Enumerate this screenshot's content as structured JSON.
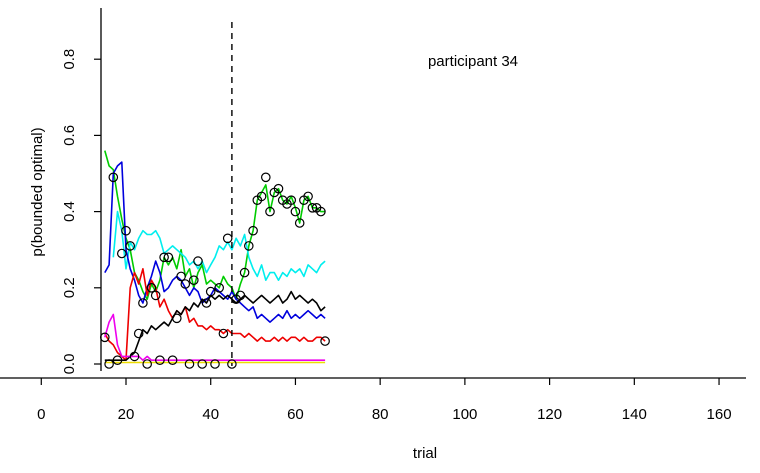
{
  "chart_data": {
    "type": "line",
    "annotation": "participant 34",
    "xlabel": "trial",
    "ylabel": "p(bounded optimal)",
    "x_ticks": [
      0,
      20,
      40,
      60,
      80,
      100,
      120,
      140,
      160
    ],
    "y_ticks": [
      0.0,
      0.2,
      0.4,
      0.6,
      0.8
    ],
    "xlim": [
      15,
      160
    ],
    "ylim": [
      0.0,
      0.9
    ],
    "vline_x": 45,
    "grid": false,
    "series": [
      {
        "color": "#00cc00",
        "x": [
          15,
          16,
          17,
          18,
          19,
          20,
          21,
          22,
          23,
          24,
          25,
          26,
          27,
          28,
          29,
          30,
          31,
          32,
          33,
          34,
          35,
          36,
          37,
          38,
          39,
          40,
          41,
          42,
          43,
          44,
          45,
          46,
          47,
          48,
          49,
          50,
          51,
          52,
          53,
          54,
          55,
          56,
          57,
          58,
          59,
          60,
          61,
          62,
          63,
          64,
          65,
          66,
          67
        ],
        "values": [
          0.56,
          0.52,
          0.51,
          0.44,
          0.38,
          0.33,
          0.3,
          0.24,
          0.22,
          0.19,
          0.17,
          0.21,
          0.19,
          0.22,
          0.28,
          0.26,
          0.28,
          0.25,
          0.3,
          0.23,
          0.25,
          0.2,
          0.24,
          0.26,
          0.21,
          0.22,
          0.21,
          0.2,
          0.23,
          0.21,
          0.2,
          0.17,
          0.21,
          0.24,
          0.31,
          0.35,
          0.43,
          0.45,
          0.47,
          0.4,
          0.45,
          0.46,
          0.43,
          0.42,
          0.44,
          0.41,
          0.37,
          0.43,
          0.44,
          0.41,
          0.41,
          0.4,
          0.4
        ]
      },
      {
        "color": "#00eeee",
        "x": [
          17,
          18,
          19,
          20,
          21,
          22,
          23,
          24,
          25,
          26,
          27,
          28,
          29,
          30,
          31,
          32,
          33,
          34,
          35,
          36,
          37,
          38,
          39,
          40,
          41,
          42,
          43,
          44,
          45,
          46,
          47,
          48,
          49,
          50,
          51,
          52,
          53,
          54,
          55,
          56,
          57,
          58,
          59,
          60,
          61,
          62,
          63,
          64,
          65,
          66,
          67
        ],
        "values": [
          0.28,
          0.4,
          0.35,
          0.25,
          0.32,
          0.3,
          0.33,
          0.35,
          0.34,
          0.34,
          0.35,
          0.33,
          0.29,
          0.3,
          0.31,
          0.3,
          0.29,
          0.28,
          0.26,
          0.27,
          0.25,
          0.27,
          0.24,
          0.26,
          0.28,
          0.31,
          0.3,
          0.32,
          0.3,
          0.33,
          0.31,
          0.34,
          0.28,
          0.25,
          0.23,
          0.26,
          0.22,
          0.24,
          0.24,
          0.22,
          0.24,
          0.23,
          0.25,
          0.24,
          0.25,
          0.23,
          0.26,
          0.25,
          0.24,
          0.26,
          0.27
        ]
      },
      {
        "color": "#0000dd",
        "x": [
          15,
          16,
          17,
          18,
          19,
          20,
          21,
          22,
          23,
          24,
          25,
          26,
          27,
          28,
          29,
          30,
          31,
          32,
          33,
          34,
          35,
          36,
          37,
          38,
          39,
          40,
          41,
          42,
          43,
          44,
          45,
          46,
          47,
          48,
          49,
          50,
          51,
          52,
          53,
          54,
          55,
          56,
          57,
          58,
          59,
          60,
          61,
          62,
          63,
          64,
          65,
          66,
          67
        ],
        "values": [
          0.24,
          0.26,
          0.5,
          0.52,
          0.53,
          0.3,
          0.25,
          0.22,
          0.18,
          0.16,
          0.2,
          0.23,
          0.27,
          0.24,
          0.19,
          0.2,
          0.22,
          0.23,
          0.22,
          0.2,
          0.18,
          0.2,
          0.19,
          0.16,
          0.17,
          0.18,
          0.2,
          0.19,
          0.18,
          0.17,
          0.19,
          0.17,
          0.16,
          0.15,
          0.14,
          0.15,
          0.12,
          0.13,
          0.12,
          0.11,
          0.12,
          0.13,
          0.12,
          0.14,
          0.12,
          0.13,
          0.12,
          0.13,
          0.14,
          0.13,
          0.12,
          0.13,
          0.12
        ]
      },
      {
        "color": "#ee0000",
        "x": [
          15,
          16,
          17,
          18,
          19,
          20,
          21,
          22,
          23,
          24,
          25,
          26,
          27,
          28,
          29,
          30,
          31,
          32,
          33,
          34,
          35,
          36,
          37,
          38,
          39,
          40,
          41,
          42,
          43,
          44,
          45,
          46,
          47,
          48,
          49,
          50,
          51,
          52,
          53,
          54,
          55,
          56,
          57,
          58,
          59,
          60,
          61,
          62,
          63,
          64,
          65,
          66,
          67
        ],
        "values": [
          0.08,
          0.06,
          0.05,
          0.03,
          0.02,
          0.01,
          0.2,
          0.24,
          0.21,
          0.25,
          0.18,
          0.22,
          0.2,
          0.15,
          0.17,
          0.14,
          0.12,
          0.14,
          0.13,
          0.15,
          0.11,
          0.12,
          0.1,
          0.1,
          0.09,
          0.1,
          0.09,
          0.09,
          0.08,
          0.09,
          0.08,
          0.08,
          0.08,
          0.07,
          0.08,
          0.07,
          0.06,
          0.07,
          0.06,
          0.06,
          0.07,
          0.06,
          0.07,
          0.06,
          0.07,
          0.07,
          0.06,
          0.07,
          0.06,
          0.06,
          0.07,
          0.07,
          0.06
        ]
      },
      {
        "color": "#000000",
        "x": [
          15,
          16,
          17,
          18,
          19,
          20,
          21,
          22,
          23,
          24,
          25,
          26,
          27,
          28,
          29,
          30,
          31,
          32,
          33,
          34,
          35,
          36,
          37,
          38,
          39,
          40,
          41,
          42,
          43,
          44,
          45,
          46,
          47,
          48,
          49,
          50,
          51,
          52,
          53,
          54,
          55,
          56,
          57,
          58,
          59,
          60,
          61,
          62,
          63,
          64,
          65,
          66,
          67
        ],
        "values": [
          0.01,
          0.01,
          0.01,
          0.01,
          0.01,
          0.01,
          0.02,
          0.03,
          0.06,
          0.09,
          0.08,
          0.1,
          0.09,
          0.1,
          0.11,
          0.1,
          0.12,
          0.14,
          0.13,
          0.15,
          0.14,
          0.16,
          0.15,
          0.17,
          0.16,
          0.18,
          0.17,
          0.18,
          0.17,
          0.18,
          0.17,
          0.16,
          0.17,
          0.18,
          0.17,
          0.16,
          0.17,
          0.18,
          0.17,
          0.16,
          0.17,
          0.18,
          0.16,
          0.17,
          0.19,
          0.17,
          0.18,
          0.17,
          0.16,
          0.17,
          0.16,
          0.14,
          0.15
        ]
      },
      {
        "color": "#ee00ee",
        "x": [
          15,
          16,
          17,
          18,
          19,
          20,
          21,
          22,
          23,
          24,
          25,
          26,
          27,
          28,
          29,
          30,
          31,
          32,
          33,
          34,
          35,
          36,
          37,
          38,
          39,
          40,
          41,
          42,
          43,
          44,
          45,
          46,
          47,
          48,
          49,
          50,
          51,
          52,
          53,
          54,
          55,
          56,
          57,
          58,
          59,
          60,
          61,
          62,
          63,
          64,
          65,
          66,
          67
        ],
        "values": [
          0.07,
          0.11,
          0.13,
          0.05,
          0.02,
          0.02,
          0.02,
          0.02,
          0.02,
          0.01,
          0.02,
          0.01,
          0.01,
          0.01,
          0.01,
          0.01,
          0.01,
          0.01,
          0.01,
          0.01,
          0.01,
          0.01,
          0.01,
          0.01,
          0.01,
          0.01,
          0.01,
          0.01,
          0.01,
          0.01,
          0.01,
          0.01,
          0.01,
          0.01,
          0.01,
          0.01,
          0.01,
          0.01,
          0.01,
          0.01,
          0.01,
          0.01,
          0.01,
          0.01,
          0.01,
          0.01,
          0.01,
          0.01,
          0.01,
          0.01,
          0.01,
          0.01,
          0.01
        ]
      },
      {
        "color": "#eedd00",
        "x": [
          15,
          20,
          25,
          30,
          35,
          40,
          45,
          50,
          55,
          60,
          65,
          67
        ],
        "values": [
          0.004,
          0.004,
          0.004,
          0.004,
          0.004,
          0.004,
          0.004,
          0.004,
          0.004,
          0.004,
          0.004,
          0.004
        ]
      }
    ],
    "points": {
      "x": [
        15,
        16,
        17,
        18,
        19,
        20,
        21,
        22,
        23,
        24,
        25,
        26,
        27,
        28,
        29,
        30,
        31,
        32,
        33,
        34,
        35,
        36,
        37,
        38,
        39,
        40,
        41,
        42,
        43,
        44,
        45,
        46,
        47,
        48,
        49,
        50,
        51,
        52,
        53,
        54,
        55,
        56,
        57,
        58,
        59,
        60,
        61,
        62,
        63,
        64,
        65,
        66,
        67
      ],
      "values": [
        0.07,
        0.0,
        0.49,
        0.01,
        0.29,
        0.35,
        0.31,
        0.02,
        0.08,
        0.16,
        0.0,
        0.2,
        0.18,
        0.01,
        0.28,
        0.28,
        0.01,
        0.12,
        0.23,
        0.21,
        0.0,
        0.22,
        0.27,
        0.0,
        0.16,
        0.19,
        0.0,
        0.2,
        0.08,
        0.33,
        0.0,
        0.17,
        0.18,
        0.24,
        0.31,
        0.35,
        0.43,
        0.44,
        0.49,
        0.4,
        0.45,
        0.46,
        0.43,
        0.42,
        0.43,
        0.4,
        0.37,
        0.43,
        0.44,
        0.41,
        0.41,
        0.4,
        0.06
      ]
    }
  }
}
